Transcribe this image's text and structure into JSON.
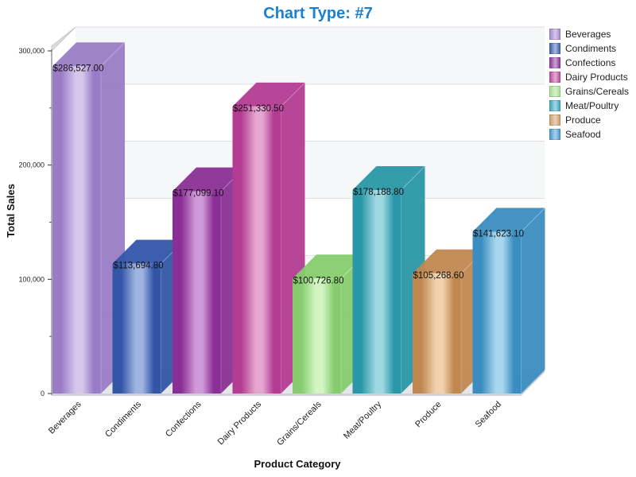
{
  "title": "Chart Type: #7",
  "chart_data": {
    "type": "bar",
    "style": "3d-cylinder-bar",
    "title": "Chart Type: #7",
    "xlabel": "Product Category",
    "ylabel": "Total Sales",
    "ylim": [
      0,
      300000
    ],
    "yticks": [
      0,
      100000,
      200000,
      300000
    ],
    "ytick_labels": [
      "0",
      "100,000",
      "200,000",
      "300,000"
    ],
    "minor_ticks": true,
    "grid": true,
    "legend_position": "right-top",
    "categories": [
      "Beverages",
      "Condiments",
      "Confections",
      "Dairy Products",
      "Grains/Cereals",
      "Meat/Poultry",
      "Produce",
      "Seafood"
    ],
    "values": [
      286527.0,
      113694.8,
      177099.1,
      251330.5,
      100726.8,
      178188.8,
      105268.6,
      141623.1
    ],
    "value_labels": [
      "$286,527.00",
      "$113,694.80",
      "$177,099.10",
      "$251,330.50",
      "$100,726.80",
      "$178,188.80",
      "$105,268.60",
      "$141,623.10"
    ],
    "colors": [
      "#9a7cc6",
      "#3355a8",
      "#8a2f95",
      "#b33c92",
      "#86cc6e",
      "#2a97a8",
      "#c08850",
      "#3a8dc0"
    ],
    "highlight_colors": [
      "#d6c6ec",
      "#9fb4e0",
      "#d09ad8",
      "#e6a6d0",
      "#d2f5c2",
      "#9fd8e2",
      "#f0d2b0",
      "#a8d6ee"
    ]
  },
  "legend": {
    "items": [
      {
        "label": "Beverages",
        "color": "#a98bd0"
      },
      {
        "label": "Condiments",
        "color": "#4466b0"
      },
      {
        "label": "Confections",
        "color": "#8e3ea0"
      },
      {
        "label": "Dairy Products",
        "color": "#c050a0"
      },
      {
        "label": "Grains/Cereals",
        "color": "#a8e090"
      },
      {
        "label": "Meat/Poultry",
        "color": "#40aac0"
      },
      {
        "label": "Produce",
        "color": "#d0a070"
      },
      {
        "label": "Seafood",
        "color": "#4d9dd0"
      }
    ]
  }
}
